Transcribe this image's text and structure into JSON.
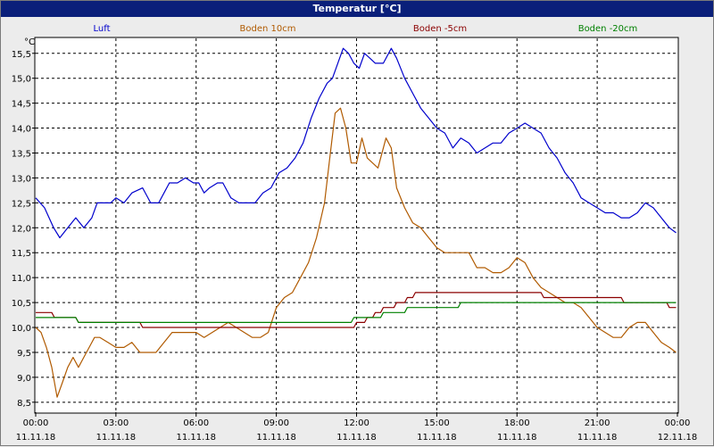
{
  "window": {
    "title": "Temperatur [°C]"
  },
  "chart_data": {
    "type": "line",
    "title": "Temperatur [°C]",
    "ylabel": "°C",
    "xlabel": "",
    "ylim": [
      8.3,
      15.8
    ],
    "xlim": [
      0,
      24
    ],
    "y_ticks": [
      8.5,
      9.0,
      9.5,
      10.0,
      10.5,
      11.0,
      11.5,
      12.0,
      12.5,
      13.0,
      13.5,
      14.0,
      14.5,
      15.0,
      15.5
    ],
    "y_tick_labels": [
      "8,5",
      "9,0",
      "9,5",
      "10,0",
      "10,5",
      "11,0",
      "11,5",
      "12,0",
      "12,5",
      "13,0",
      "13,5",
      "14,0",
      "14,5",
      "15,0",
      "15,5"
    ],
    "x_ticks": [
      0,
      3,
      6,
      9,
      12,
      15,
      18,
      21,
      24
    ],
    "x_tick_times": [
      "00:00",
      "03:00",
      "06:00",
      "09:00",
      "12:00",
      "15:00",
      "18:00",
      "21:00",
      "00:00"
    ],
    "x_tick_dates": [
      "11.11.18",
      "11.11.18",
      "11.11.18",
      "11.11.18",
      "11.11.18",
      "11.11.18",
      "11.11.18",
      "11.11.18",
      "12.11.18"
    ],
    "grid": true,
    "legend_position": "top",
    "series": [
      {
        "name": "Luft",
        "color": "#0000cc",
        "x": [
          0,
          0.33,
          0.67,
          0.9,
          1.2,
          1.5,
          1.8,
          2.1,
          2.3,
          2.5,
          2.8,
          3.0,
          3.3,
          3.6,
          4.0,
          4.3,
          4.6,
          4.8,
          5.0,
          5.3,
          5.6,
          5.9,
          6.1,
          6.3,
          6.5,
          6.8,
          7.0,
          7.3,
          7.6,
          7.9,
          8.2,
          8.5,
          8.8,
          9.1,
          9.4,
          9.7,
          10.0,
          10.3,
          10.6,
          10.9,
          11.1,
          11.3,
          11.5,
          11.7,
          11.9,
          12.1,
          12.3,
          12.5,
          12.7,
          13.0,
          13.3,
          13.5,
          13.8,
          14.1,
          14.4,
          14.7,
          15.0,
          15.3,
          15.6,
          15.9,
          16.2,
          16.5,
          16.8,
          17.1,
          17.4,
          17.7,
          18.0,
          18.3,
          18.6,
          18.9,
          19.2,
          19.5,
          19.8,
          20.1,
          20.4,
          20.7,
          21.0,
          21.3,
          21.6,
          21.9,
          22.2,
          22.5,
          22.8,
          23.1,
          23.4,
          23.7,
          23.95
        ],
        "values": [
          12.6,
          12.4,
          12.0,
          11.8,
          12.0,
          12.2,
          12.0,
          12.2,
          12.5,
          12.5,
          12.5,
          12.6,
          12.5,
          12.7,
          12.8,
          12.5,
          12.5,
          12.7,
          12.9,
          12.9,
          13.0,
          12.9,
          12.9,
          12.7,
          12.8,
          12.9,
          12.9,
          12.6,
          12.5,
          12.5,
          12.5,
          12.7,
          12.8,
          13.1,
          13.2,
          13.4,
          13.7,
          14.2,
          14.6,
          14.9,
          15.0,
          15.3,
          15.6,
          15.5,
          15.3,
          15.2,
          15.5,
          15.4,
          15.3,
          15.3,
          15.6,
          15.4,
          15.0,
          14.7,
          14.4,
          14.2,
          14.0,
          13.9,
          13.6,
          13.8,
          13.7,
          13.5,
          13.6,
          13.7,
          13.7,
          13.9,
          14.0,
          14.1,
          14.0,
          13.9,
          13.6,
          13.4,
          13.1,
          12.9,
          12.6,
          12.5,
          12.4,
          12.3,
          12.3,
          12.2,
          12.2,
          12.3,
          12.5,
          12.4,
          12.2,
          12.0,
          11.9
        ]
      },
      {
        "name": "Boden 10cm",
        "color": "#b05a00",
        "x": [
          0,
          0.2,
          0.4,
          0.6,
          0.8,
          1.0,
          1.2,
          1.4,
          1.6,
          1.8,
          2.0,
          2.2,
          2.4,
          2.7,
          3.0,
          3.3,
          3.6,
          3.9,
          4.2,
          4.5,
          4.8,
          5.1,
          5.4,
          5.7,
          6.0,
          6.3,
          6.6,
          6.9,
          7.2,
          7.5,
          7.8,
          8.1,
          8.4,
          8.7,
          9.0,
          9.3,
          9.6,
          9.9,
          10.2,
          10.5,
          10.8,
          11.0,
          11.2,
          11.4,
          11.6,
          11.8,
          12.0,
          12.2,
          12.4,
          12.6,
          12.8,
          13.1,
          13.3,
          13.5,
          13.8,
          14.1,
          14.4,
          14.7,
          15.0,
          15.3,
          15.6,
          15.9,
          16.2,
          16.5,
          16.8,
          17.1,
          17.4,
          17.7,
          18.0,
          18.3,
          18.6,
          18.9,
          19.2,
          19.5,
          19.8,
          20.1,
          20.4,
          20.7,
          21.0,
          21.3,
          21.6,
          21.9,
          22.2,
          22.5,
          22.8,
          23.1,
          23.4,
          23.7,
          23.95
        ],
        "values": [
          10.0,
          9.9,
          9.6,
          9.2,
          8.6,
          8.9,
          9.2,
          9.4,
          9.2,
          9.4,
          9.6,
          9.8,
          9.8,
          9.7,
          9.6,
          9.6,
          9.7,
          9.5,
          9.5,
          9.5,
          9.7,
          9.9,
          9.9,
          9.9,
          9.9,
          9.8,
          9.9,
          10.0,
          10.1,
          10.0,
          9.9,
          9.8,
          9.8,
          9.9,
          10.4,
          10.6,
          10.7,
          11.0,
          11.3,
          11.8,
          12.5,
          13.4,
          14.3,
          14.4,
          14.0,
          13.3,
          13.3,
          13.8,
          13.4,
          13.3,
          13.2,
          13.8,
          13.6,
          12.8,
          12.4,
          12.1,
          12.0,
          11.8,
          11.6,
          11.5,
          11.5,
          11.5,
          11.5,
          11.2,
          11.2,
          11.1,
          11.1,
          11.2,
          11.4,
          11.3,
          11.0,
          10.8,
          10.7,
          10.6,
          10.5,
          10.5,
          10.4,
          10.2,
          10.0,
          9.9,
          9.8,
          9.8,
          10.0,
          10.1,
          10.1,
          9.9,
          9.7,
          9.6,
          9.5
        ]
      },
      {
        "name": "Boden -5cm",
        "color": "#8b0000",
        "x": [
          0,
          0.6,
          0.7,
          1.5,
          1.6,
          3.9,
          4.0,
          8.8,
          8.9,
          10.3,
          10.4,
          11.9,
          12.0,
          12.3,
          12.4,
          12.6,
          12.7,
          12.9,
          13.0,
          13.4,
          13.5,
          13.8,
          13.9,
          14.1,
          14.2,
          18.9,
          19.0,
          21.9,
          22.0,
          23.6,
          23.7,
          23.95
        ],
        "values": [
          10.3,
          10.3,
          10.2,
          10.2,
          10.1,
          10.1,
          10.0,
          10.0,
          10.0,
          10.0,
          10.0,
          10.0,
          10.1,
          10.1,
          10.2,
          10.2,
          10.3,
          10.3,
          10.4,
          10.4,
          10.5,
          10.5,
          10.6,
          10.6,
          10.7,
          10.7,
          10.6,
          10.6,
          10.5,
          10.5,
          10.4,
          10.4
        ]
      },
      {
        "name": "Boden -20cm",
        "color": "#008000",
        "x": [
          0,
          1.5,
          1.6,
          9.8,
          9.9,
          11.8,
          11.9,
          12.9,
          13.0,
          13.8,
          13.9,
          14.8,
          14.9,
          15.8,
          15.9,
          23.95
        ],
        "values": [
          10.2,
          10.2,
          10.1,
          10.1,
          10.1,
          10.1,
          10.2,
          10.2,
          10.3,
          10.3,
          10.4,
          10.4,
          10.4,
          10.4,
          10.5,
          10.5
        ]
      }
    ]
  }
}
